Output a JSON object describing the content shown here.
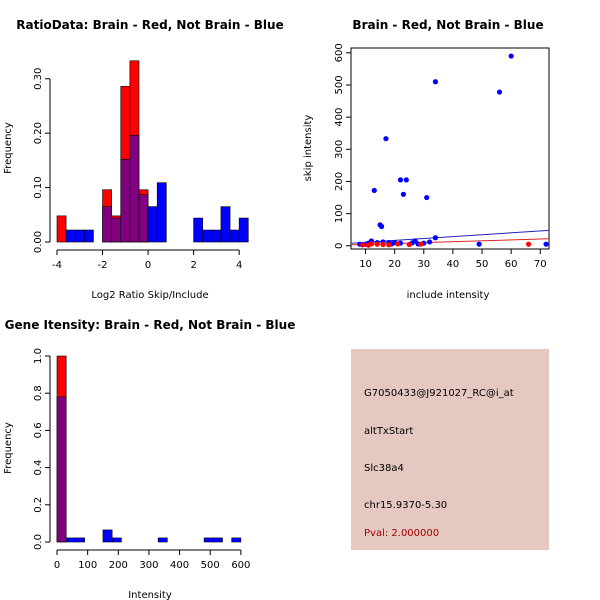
{
  "colors": {
    "red": "#ff0000",
    "blue": "#0000ff",
    "overlap": "#800080",
    "info_bg": "#e5c8c0",
    "pval": "#aa0000",
    "fit_red": "#dd2222",
    "fit_blue": "#2222bb"
  },
  "chart_data": [
    {
      "type": "bar",
      "title": "RatioData: Brain - Red, Not Brain - Blue",
      "xlabel": "Log2 Ratio Skip/Include",
      "ylabel": "Frequency",
      "xlim": [
        -4,
        4.3
      ],
      "ylim": [
        0,
        0.34
      ],
      "xticks": [
        -4,
        -2,
        0,
        2,
        4
      ],
      "yticks": [
        0.0,
        0.1,
        0.2,
        0.3
      ],
      "ytick_labels": [
        "0.00",
        "0.10",
        "0.20",
        "0.30"
      ],
      "series": [
        {
          "name": "Brain",
          "color": "red",
          "bins": [
            {
              "x0": -4.0,
              "x1": -3.6,
              "v": 0.048
            },
            {
              "x0": -2.0,
              "x1": -1.6,
              "v": 0.096
            },
            {
              "x0": -1.6,
              "x1": -1.2,
              "v": 0.048
            },
            {
              "x0": -1.2,
              "x1": -0.8,
              "v": 0.286
            },
            {
              "x0": -0.8,
              "x1": -0.4,
              "v": 0.333
            },
            {
              "x0": -0.4,
              "x1": 0.0,
              "v": 0.096
            }
          ]
        },
        {
          "name": "Not Brain",
          "color": "blue",
          "bins": [
            {
              "x0": -3.6,
              "x1": -3.2,
              "v": 0.022
            },
            {
              "x0": -3.2,
              "x1": -2.8,
              "v": 0.022
            },
            {
              "x0": -2.8,
              "x1": -2.4,
              "v": 0.022
            },
            {
              "x0": -2.0,
              "x1": -1.6,
              "v": 0.065
            },
            {
              "x0": -1.6,
              "x1": -1.2,
              "v": 0.044
            },
            {
              "x0": -1.2,
              "x1": -0.8,
              "v": 0.152
            },
            {
              "x0": -0.8,
              "x1": -0.4,
              "v": 0.196
            },
            {
              "x0": -0.4,
              "x1": 0.0,
              "v": 0.087
            },
            {
              "x0": 0.0,
              "x1": 0.4,
              "v": 0.065
            },
            {
              "x0": 0.4,
              "x1": 0.8,
              "v": 0.109
            },
            {
              "x0": 2.0,
              "x1": 2.4,
              "v": 0.044
            },
            {
              "x0": 2.4,
              "x1": 2.8,
              "v": 0.022
            },
            {
              "x0": 2.8,
              "x1": 3.2,
              "v": 0.022
            },
            {
              "x0": 3.2,
              "x1": 3.6,
              "v": 0.065
            },
            {
              "x0": 3.6,
              "x1": 4.0,
              "v": 0.022
            },
            {
              "x0": 4.0,
              "x1": 4.4,
              "v": 0.044
            }
          ]
        }
      ]
    },
    {
      "type": "scatter",
      "title": "Brain - Red, Not Brain - Blue",
      "xlabel": "include intensity",
      "ylabel": "skip intensity",
      "xlim": [
        5,
        73
      ],
      "ylim": [
        -10,
        615
      ],
      "xticks": [
        10,
        20,
        30,
        40,
        50,
        60,
        70
      ],
      "yticks": [
        0,
        100,
        200,
        300,
        400,
        500,
        600
      ],
      "series": [
        {
          "name": "Not Brain",
          "color": "blue",
          "points": [
            [
              60,
              590
            ],
            [
              34,
              510
            ],
            [
              56,
              478
            ],
            [
              17,
              333
            ],
            [
              22,
              205
            ],
            [
              23,
              160
            ],
            [
              13,
              172
            ],
            [
              31,
              150
            ],
            [
              15,
              65
            ],
            [
              15.5,
              60
            ],
            [
              24,
              205
            ],
            [
              34,
              25
            ],
            [
              27,
              15
            ],
            [
              12,
              15
            ],
            [
              14,
              10
            ],
            [
              18,
              10
            ],
            [
              22,
              8
            ],
            [
              30,
              8
            ],
            [
              32,
              12
            ],
            [
              49,
              5
            ],
            [
              72,
              5
            ],
            [
              8,
              5
            ],
            [
              10,
              5
            ],
            [
              11,
              8
            ],
            [
              16,
              12
            ],
            [
              19,
              6
            ],
            [
              26,
              9
            ],
            [
              28,
              6
            ],
            [
              9,
              4
            ],
            [
              20,
              10
            ]
          ]
        },
        {
          "name": "Brain",
          "color": "red",
          "points": [
            [
              66,
              5
            ],
            [
              14,
              5
            ],
            [
              21,
              6
            ],
            [
              25,
              4
            ],
            [
              9,
              3
            ],
            [
              12,
              6
            ],
            [
              16,
              4
            ],
            [
              29,
              5
            ],
            [
              11,
              2
            ],
            [
              18,
              3
            ]
          ]
        }
      ],
      "fit_lines": [
        {
          "color": "fit_blue",
          "from": [
            5,
            8
          ],
          "to": [
            73,
            48
          ]
        },
        {
          "color": "fit_red",
          "from": [
            5,
            3
          ],
          "to": [
            73,
            22
          ]
        }
      ]
    },
    {
      "type": "bar",
      "title": "Gene Itensity: Brain - Red, Not Brain - Blue",
      "xlabel": "Intensity",
      "ylabel": "Frequency",
      "xlim": [
        0,
        620
      ],
      "ylim": [
        0,
        1.0
      ],
      "xticks": [
        0,
        100,
        200,
        300,
        400,
        500,
        600
      ],
      "yticks": [
        0.0,
        0.2,
        0.4,
        0.6,
        0.8,
        1.0
      ],
      "ytick_labels": [
        "0.0",
        "0.2",
        "0.4",
        "0.6",
        "0.8",
        "1.0"
      ],
      "series": [
        {
          "name": "Brain",
          "color": "red",
          "bins": [
            {
              "x0": 0,
              "x1": 30,
              "v": 1.0
            }
          ]
        },
        {
          "name": "Not Brain",
          "color": "blue",
          "bins": [
            {
              "x0": 0,
              "x1": 30,
              "v": 0.78
            },
            {
              "x0": 30,
              "x1": 60,
              "v": 0.022
            },
            {
              "x0": 60,
              "x1": 90,
              "v": 0.022
            },
            {
              "x0": 150,
              "x1": 180,
              "v": 0.065
            },
            {
              "x0": 180,
              "x1": 210,
              "v": 0.022
            },
            {
              "x0": 330,
              "x1": 360,
              "v": 0.022
            },
            {
              "x0": 480,
              "x1": 510,
              "v": 0.022
            },
            {
              "x0": 510,
              "x1": 540,
              "v": 0.022
            },
            {
              "x0": 570,
              "x1": 600,
              "v": 0.022
            }
          ]
        }
      ]
    }
  ],
  "info": {
    "probe_id": "G7050433@J921027_RC@i_at",
    "event_type": "altTxStart",
    "gene": "Slc38a4",
    "location": "chr15.9370-5.30",
    "pval": "Pval: 2.000000"
  }
}
